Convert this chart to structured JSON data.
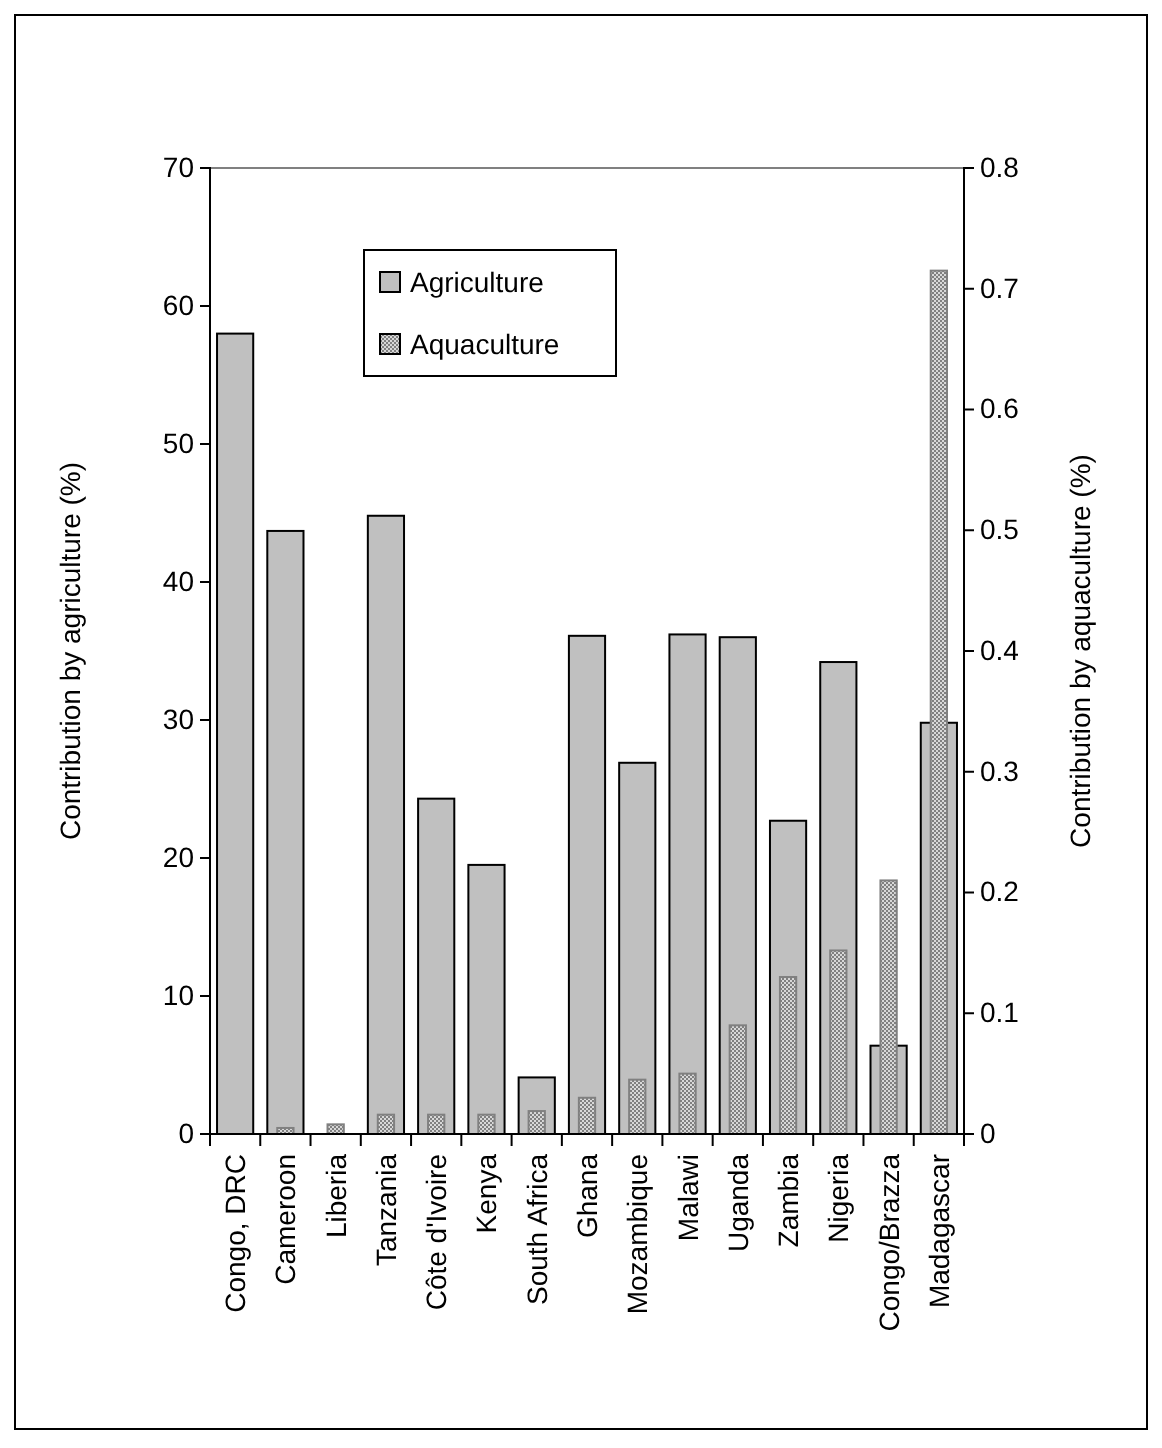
{
  "chart_data": {
    "type": "bar",
    "xlabel": null,
    "ylabel": "Contribution by agriculture (%)",
    "y2label": "Contribution by aquaculture (%)",
    "categories": [
      "Congo, DRC",
      "Cameroon",
      "Liberia",
      "Tanzania",
      "Côte d'Ivoire",
      "Kenya",
      "South Africa",
      "Ghana",
      "Mozambique",
      "Malawi",
      "Uganda",
      "Zambia",
      "Nigeria",
      "Congo/Brazza",
      "Madagascar"
    ],
    "series": [
      {
        "name": "Agriculture",
        "color": "#c0c0c0",
        "values": [
          58.0,
          43.7,
          null,
          44.8,
          24.3,
          19.5,
          4.1,
          36.1,
          26.9,
          36.2,
          36.0,
          22.7,
          34.2,
          6.4,
          29.8
        ]
      },
      {
        "name": "Aquaculture",
        "color": "#808080",
        "axis": "y2",
        "values": [
          null,
          0.005,
          0.008,
          0.016,
          0.016,
          0.016,
          0.019,
          0.03,
          0.045,
          0.05,
          0.09,
          0.13,
          0.152,
          0.21,
          0.715
        ]
      }
    ],
    "ylim": [
      0,
      70
    ],
    "yticks": [
      0,
      10,
      20,
      30,
      40,
      50,
      60,
      70
    ],
    "y2lim": [
      0,
      0.8
    ],
    "y2ticks": [
      0,
      0.1,
      0.2,
      0.3,
      0.4,
      0.5,
      0.6,
      0.7,
      0.8
    ],
    "legend": "top left",
    "grid": false
  }
}
